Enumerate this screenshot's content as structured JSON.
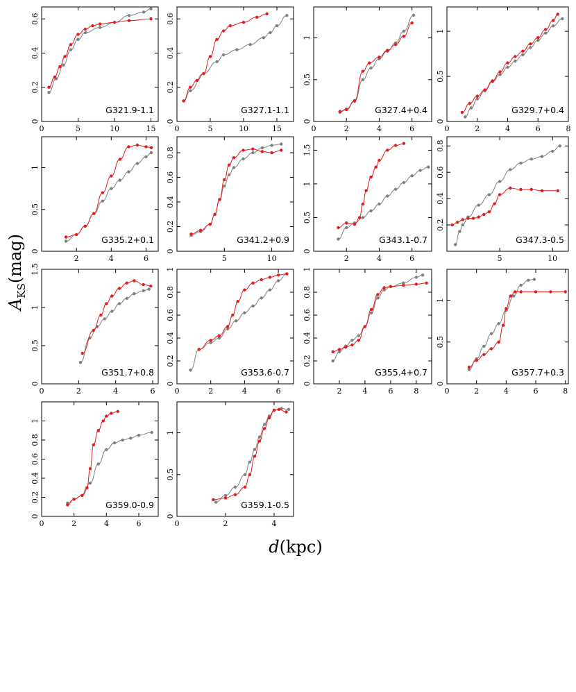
{
  "figure": {
    "ylabel_main": "A",
    "ylabel_sub": "KS",
    "ylabel_unit": "(mag)",
    "xlabel_main": "d",
    "xlabel_unit": "(kpc)",
    "colors": {
      "red": "#e41a1c",
      "gray": "#7f7f7f"
    }
  },
  "chart_data": [
    {
      "type": "scatter",
      "title": "G321.9-1.1",
      "xlim": [
        0,
        16
      ],
      "ylim": [
        0,
        0.67
      ],
      "xticks": [
        0,
        5,
        10,
        15
      ],
      "yticks": [
        0,
        0.2,
        0.4,
        0.6
      ],
      "series": [
        {
          "name": "red",
          "x": [
            1,
            1.8,
            2.5,
            3.2,
            4,
            5,
            6,
            7,
            8,
            10,
            12,
            15
          ],
          "y": [
            0.2,
            0.26,
            0.32,
            0.38,
            0.45,
            0.51,
            0.54,
            0.56,
            0.57,
            0.58,
            0.59,
            0.6
          ]
        },
        {
          "name": "gray",
          "x": [
            1,
            2,
            3,
            4,
            5,
            6,
            8,
            10,
            12,
            14,
            15
          ],
          "y": [
            0.17,
            0.25,
            0.33,
            0.42,
            0.48,
            0.52,
            0.55,
            0.58,
            0.62,
            0.64,
            0.66
          ]
        }
      ]
    },
    {
      "type": "scatter",
      "title": "G327.1-1.1",
      "xlim": [
        0,
        17.5
      ],
      "ylim": [
        0,
        0.67
      ],
      "xticks": [
        0,
        5,
        10,
        15
      ],
      "yticks": [
        0,
        0.2,
        0.4,
        0.6
      ],
      "series": [
        {
          "name": "red",
          "x": [
            1,
            2,
            3,
            4,
            5,
            6,
            7,
            8,
            10,
            12,
            13.5
          ],
          "y": [
            0.12,
            0.2,
            0.24,
            0.28,
            0.38,
            0.48,
            0.53,
            0.56,
            0.58,
            0.61,
            0.63
          ]
        },
        {
          "name": "gray",
          "x": [
            1,
            2,
            4,
            6,
            7,
            9,
            11,
            13,
            14,
            15,
            16.5
          ],
          "y": [
            0.12,
            0.18,
            0.28,
            0.35,
            0.39,
            0.42,
            0.45,
            0.49,
            0.52,
            0.56,
            0.62
          ]
        }
      ]
    },
    {
      "type": "scatter",
      "title": "G327.4+0.4",
      "xlim": [
        0,
        7.2
      ],
      "ylim": [
        0,
        1.37
      ],
      "xticks": [
        0,
        2,
        4,
        6
      ],
      "yticks": [
        0,
        0.5,
        1
      ],
      "series": [
        {
          "name": "red",
          "x": [
            1.6,
            2,
            2.5,
            3,
            3.4,
            4,
            4.5,
            5,
            5.5,
            6
          ],
          "y": [
            0.12,
            0.14,
            0.25,
            0.6,
            0.7,
            0.77,
            0.85,
            0.92,
            1.02,
            1.18
          ]
        },
        {
          "name": "gray",
          "x": [
            1.6,
            2,
            2.5,
            3,
            3.5,
            4,
            4.5,
            5,
            5.5,
            6.1
          ],
          "y": [
            0.11,
            0.15,
            0.24,
            0.5,
            0.64,
            0.75,
            0.84,
            0.94,
            1.08,
            1.27
          ]
        }
      ]
    },
    {
      "type": "scatter",
      "title": "G329.7+0.4",
      "xlim": [
        0,
        8
      ],
      "ylim": [
        0,
        1.27
      ],
      "xticks": [
        0,
        2,
        4,
        6,
        8
      ],
      "yticks": [
        0,
        0.5,
        1
      ],
      "series": [
        {
          "name": "red",
          "x": [
            1,
            1.5,
            2,
            2.5,
            3,
            3.5,
            4,
            4.5,
            5,
            5.5,
            6,
            6.5,
            7,
            7.3
          ],
          "y": [
            0.1,
            0.2,
            0.28,
            0.35,
            0.45,
            0.55,
            0.65,
            0.72,
            0.78,
            0.86,
            0.93,
            1.02,
            1.12,
            1.19
          ]
        },
        {
          "name": "gray",
          "x": [
            1.2,
            1.6,
            2,
            2.5,
            3,
            3.5,
            4,
            4.5,
            5,
            5.5,
            6,
            6.5,
            7,
            7.6
          ],
          "y": [
            0.05,
            0.15,
            0.25,
            0.34,
            0.44,
            0.52,
            0.6,
            0.67,
            0.74,
            0.82,
            0.9,
            0.98,
            1.06,
            1.14
          ]
        }
      ]
    },
    {
      "type": "scatter",
      "title": "G335.2+0.1",
      "xlim": [
        0,
        6.7
      ],
      "ylim": [
        0,
        1.37
      ],
      "xticks": [
        2,
        4,
        6
      ],
      "yticks": [
        0,
        0.5,
        1
      ],
      "series": [
        {
          "name": "red",
          "x": [
            1.4,
            2,
            2.5,
            3,
            3.5,
            4,
            4.5,
            5,
            5.5,
            6,
            6.3
          ],
          "y": [
            0.17,
            0.2,
            0.3,
            0.45,
            0.7,
            0.9,
            1.1,
            1.25,
            1.27,
            1.25,
            1.24
          ]
        },
        {
          "name": "gray",
          "x": [
            1.4,
            2,
            2.5,
            3,
            3.5,
            4,
            4.5,
            5,
            5.5,
            6,
            6.3
          ],
          "y": [
            0.12,
            0.2,
            0.3,
            0.45,
            0.6,
            0.75,
            0.85,
            0.95,
            1.05,
            1.13,
            1.18
          ]
        }
      ]
    },
    {
      "type": "scatter",
      "title": "G341.2+0.9",
      "xlim": [
        0,
        12.3
      ],
      "ylim": [
        0,
        0.93
      ],
      "xticks": [
        5,
        10
      ],
      "yticks": [
        0,
        0.2,
        0.4,
        0.6,
        0.8
      ],
      "series": [
        {
          "name": "red",
          "x": [
            1.5,
            2.5,
            3.5,
            4,
            4.5,
            5,
            5.5,
            6,
            7,
            8,
            9,
            10,
            11
          ],
          "y": [
            0.14,
            0.17,
            0.22,
            0.3,
            0.42,
            0.58,
            0.7,
            0.76,
            0.82,
            0.83,
            0.81,
            0.8,
            0.82
          ]
        },
        {
          "name": "gray",
          "x": [
            1.5,
            2.5,
            3.5,
            4,
            4.5,
            5,
            5.5,
            6,
            7,
            8,
            9,
            10,
            11
          ],
          "y": [
            0.13,
            0.16,
            0.22,
            0.3,
            0.42,
            0.53,
            0.62,
            0.68,
            0.75,
            0.8,
            0.84,
            0.86,
            0.87
          ]
        }
      ]
    },
    {
      "type": "scatter",
      "title": "G343.1-0.7",
      "xlim": [
        0,
        7.2
      ],
      "ylim": [
        0,
        1.7
      ],
      "xticks": [
        2,
        4,
        6
      ],
      "yticks": [
        0,
        0.5,
        1,
        1.5
      ],
      "series": [
        {
          "name": "red",
          "x": [
            1.5,
            2,
            2.5,
            2.8,
            3,
            3.2,
            3.5,
            3.8,
            4,
            4.5,
            5,
            5.5
          ],
          "y": [
            0.35,
            0.42,
            0.4,
            0.5,
            0.7,
            0.9,
            1.1,
            1.25,
            1.35,
            1.5,
            1.57,
            1.6
          ]
        },
        {
          "name": "gray",
          "x": [
            1.5,
            2,
            2.5,
            3,
            3.5,
            4,
            4.5,
            5,
            5.5,
            6,
            6.5,
            7
          ],
          "y": [
            0.18,
            0.35,
            0.42,
            0.5,
            0.6,
            0.7,
            0.82,
            0.92,
            1.02,
            1.12,
            1.2,
            1.25
          ]
        }
      ]
    },
    {
      "type": "scatter",
      "title": "G347.3-0.5",
      "xlim": [
        0,
        11.5
      ],
      "ylim": [
        0,
        0.87
      ],
      "xticks": [
        5,
        10
      ],
      "yticks": [
        0.2,
        0.4,
        0.6,
        0.8
      ],
      "series": [
        {
          "name": "red",
          "x": [
            0.5,
            1,
            1.5,
            2,
            2.5,
            3,
            3.5,
            4,
            4.5,
            5,
            6,
            7,
            8,
            9,
            10.5
          ],
          "y": [
            0.2,
            0.22,
            0.24,
            0.25,
            0.25,
            0.26,
            0.28,
            0.3,
            0.36,
            0.43,
            0.48,
            0.47,
            0.47,
            0.46,
            0.46
          ]
        },
        {
          "name": "gray",
          "x": [
            0.8,
            1.2,
            1.5,
            2,
            3,
            4,
            5,
            6,
            7,
            8,
            9,
            10,
            10.7
          ],
          "y": [
            0.05,
            0.15,
            0.2,
            0.26,
            0.35,
            0.43,
            0.53,
            0.62,
            0.67,
            0.7,
            0.72,
            0.76,
            0.8
          ]
        }
      ]
    },
    {
      "type": "scatter",
      "title": "G351.7+0.8",
      "xlim": [
        0,
        6.3
      ],
      "ylim": [
        0,
        1.5
      ],
      "xticks": [
        0,
        2,
        4,
        6
      ],
      "yticks": [
        0,
        0.5,
        1,
        1.5
      ],
      "series": [
        {
          "name": "red",
          "x": [
            2.2,
            2.8,
            3.2,
            3.5,
            3.8,
            4.2,
            4.6,
            5,
            5.5,
            5.9
          ],
          "y": [
            0.4,
            0.7,
            0.9,
            1.05,
            1.15,
            1.25,
            1.32,
            1.35,
            1.3,
            1.28
          ]
        },
        {
          "name": "gray",
          "x": [
            2.1,
            2.6,
            3,
            3.4,
            3.8,
            4.2,
            4.6,
            5,
            5.5,
            5.8
          ],
          "y": [
            0.28,
            0.6,
            0.75,
            0.85,
            0.95,
            1.05,
            1.12,
            1.18,
            1.22,
            1.24
          ]
        }
      ]
    },
    {
      "type": "scatter",
      "title": "G353.6-0.7",
      "xlim": [
        0,
        6.9
      ],
      "ylim": [
        0,
        1
      ],
      "xticks": [
        0,
        2,
        4,
        6
      ],
      "yticks": [
        0,
        0.2,
        0.4,
        0.6,
        0.8,
        1
      ],
      "series": [
        {
          "name": "red",
          "x": [
            1.3,
            2,
            2.5,
            3,
            3.3,
            3.6,
            4,
            4.5,
            5,
            5.5,
            6,
            6.5
          ],
          "y": [
            0.3,
            0.38,
            0.42,
            0.5,
            0.6,
            0.72,
            0.82,
            0.88,
            0.91,
            0.93,
            0.95,
            0.96
          ]
        },
        {
          "name": "gray",
          "x": [
            0.8,
            1.3,
            2,
            2.5,
            3,
            3.5,
            4,
            4.5,
            5,
            5.5,
            6,
            6.5
          ],
          "y": [
            0.12,
            0.3,
            0.36,
            0.4,
            0.48,
            0.55,
            0.62,
            0.68,
            0.75,
            0.82,
            0.9,
            0.96
          ]
        }
      ]
    },
    {
      "type": "scatter",
      "title": "G355.4+0.7",
      "xlim": [
        0,
        9.2
      ],
      "ylim": [
        0,
        1
      ],
      "xticks": [
        2,
        4,
        6,
        8
      ],
      "yticks": [
        0,
        0.2,
        0.4,
        0.6,
        0.8,
        1
      ],
      "series": [
        {
          "name": "red",
          "x": [
            1.5,
            2,
            2.5,
            3,
            3.5,
            4,
            4.5,
            5,
            5.5,
            6,
            7,
            8,
            8.8
          ],
          "y": [
            0.28,
            0.3,
            0.32,
            0.34,
            0.38,
            0.5,
            0.65,
            0.78,
            0.84,
            0.85,
            0.86,
            0.87,
            0.88
          ]
        },
        {
          "name": "gray",
          "x": [
            1.5,
            2,
            2.5,
            3,
            3.5,
            4,
            4.5,
            5,
            5.5,
            6,
            7,
            8,
            8.5
          ],
          "y": [
            0.2,
            0.28,
            0.33,
            0.38,
            0.42,
            0.5,
            0.62,
            0.75,
            0.82,
            0.85,
            0.88,
            0.93,
            0.95
          ]
        }
      ]
    },
    {
      "type": "scatter",
      "title": "G357.7+0.3",
      "xlim": [
        0,
        8.2
      ],
      "ylim": [
        0,
        1.37
      ],
      "xticks": [
        0,
        2,
        4,
        6,
        8
      ],
      "yticks": [
        0,
        0.5,
        1
      ],
      "series": [
        {
          "name": "red",
          "x": [
            1.5,
            2,
            2.5,
            3,
            3.5,
            3.8,
            4,
            4.3,
            4.6,
            5,
            6,
            7,
            8
          ],
          "y": [
            0.2,
            0.28,
            0.35,
            0.42,
            0.5,
            0.7,
            0.9,
            1.05,
            1.1,
            1.1,
            1.1,
            1.1,
            1.1
          ]
        },
        {
          "name": "gray",
          "x": [
            1.5,
            2,
            2.5,
            3,
            3.5,
            4,
            4.5,
            5,
            5.5,
            5.9
          ],
          "y": [
            0.17,
            0.3,
            0.45,
            0.6,
            0.72,
            0.88,
            1.05,
            1.18,
            1.24,
            1.25
          ]
        }
      ]
    },
    {
      "type": "scatter",
      "title": "G359.0-0.9",
      "xlim": [
        0,
        7.2
      ],
      "ylim": [
        0,
        1.2
      ],
      "xticks": [
        0,
        2,
        4,
        6
      ],
      "yticks": [
        0,
        0.2,
        0.4,
        0.6,
        0.8,
        1
      ],
      "series": [
        {
          "name": "red",
          "x": [
            1.6,
            2,
            2.5,
            2.8,
            3,
            3.2,
            3.5,
            3.8,
            4,
            4.3,
            4.7
          ],
          "y": [
            0.12,
            0.18,
            0.22,
            0.3,
            0.5,
            0.75,
            0.9,
            1.0,
            1.05,
            1.08,
            1.1
          ]
        },
        {
          "name": "gray",
          "x": [
            1.6,
            2,
            2.5,
            3,
            3.5,
            4,
            4.5,
            5,
            5.5,
            6,
            6.8
          ],
          "y": [
            0.14,
            0.18,
            0.22,
            0.35,
            0.55,
            0.7,
            0.77,
            0.8,
            0.82,
            0.85,
            0.88
          ]
        }
      ]
    },
    {
      "type": "scatter",
      "title": "G359.1-0.5",
      "xlim": [
        0,
        4.8
      ],
      "ylim": [
        0,
        1.37
      ],
      "xticks": [
        0,
        2,
        4
      ],
      "yticks": [
        0,
        0.5,
        1
      ],
      "series": [
        {
          "name": "red",
          "x": [
            1.5,
            2,
            2.4,
            2.8,
            3,
            3.2,
            3.4,
            3.6,
            3.8,
            4,
            4.2,
            4.5
          ],
          "y": [
            0.2,
            0.22,
            0.26,
            0.35,
            0.5,
            0.72,
            0.9,
            1.05,
            1.18,
            1.27,
            1.28,
            1.25
          ]
        },
        {
          "name": "gray",
          "x": [
            1.6,
            2,
            2.4,
            2.8,
            3,
            3.2,
            3.4,
            3.6,
            3.8,
            4,
            4.3,
            4.6
          ],
          "y": [
            0.17,
            0.25,
            0.35,
            0.5,
            0.65,
            0.8,
            0.95,
            1.1,
            1.2,
            1.27,
            1.29,
            1.28
          ]
        }
      ]
    }
  ]
}
